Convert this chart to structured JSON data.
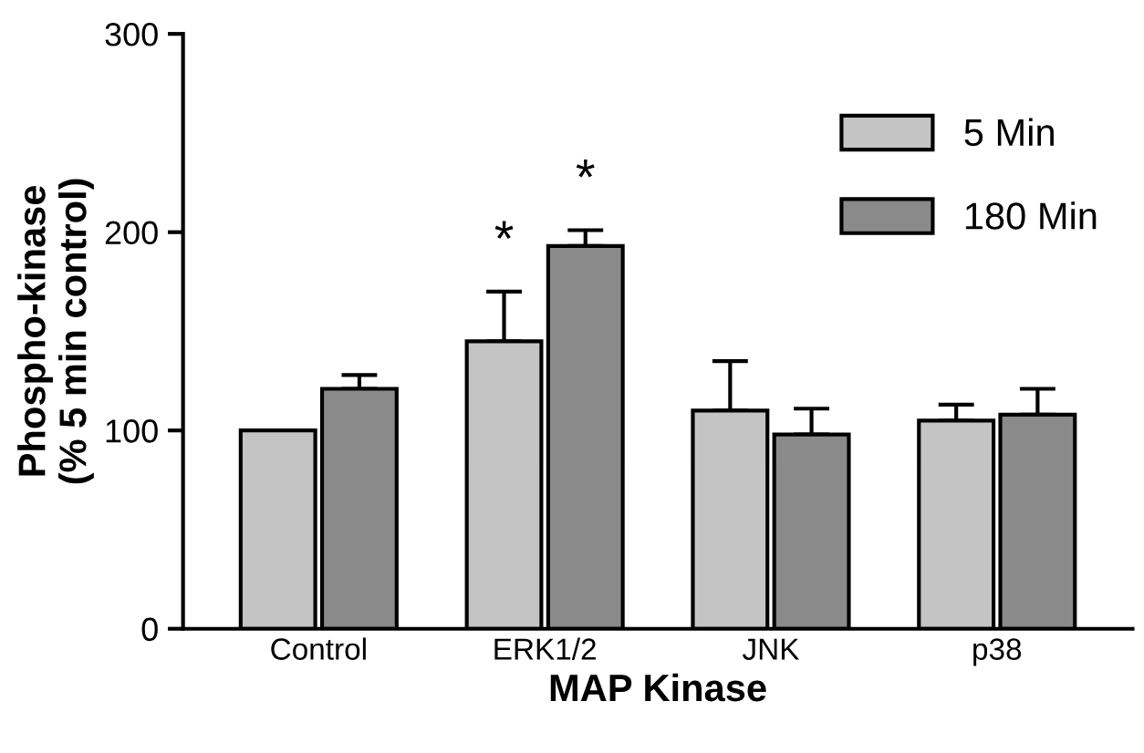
{
  "chart_data": {
    "type": "bar",
    "xlabel": "MAP Kinase",
    "ylabel": "Phospho-kinase\n(% 5 min control)",
    "categories": [
      "Control",
      "ERK1/2",
      "JNK",
      "p38"
    ],
    "series": [
      {
        "name": "5 Min",
        "color": "#c4c4c4",
        "values": [
          100,
          145,
          110,
          105
        ],
        "errors": [
          null,
          25,
          25,
          8
        ]
      },
      {
        "name": "180 Min",
        "color": "#8a8a8a",
        "values": [
          121,
          193,
          98,
          108
        ],
        "errors": [
          7,
          8,
          13,
          13
        ]
      }
    ],
    "annotations": [
      "*",
      "*"
    ],
    "ylim": [
      0,
      300
    ],
    "yticks": [
      0,
      100,
      200,
      300
    ],
    "legend": "top right",
    "grid": false
  }
}
